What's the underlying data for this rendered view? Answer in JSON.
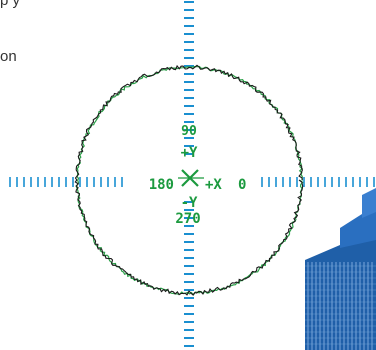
{
  "background_text": {
    "line_1": "p                y",
    "line_2": "on"
  },
  "crosshair": {
    "label_top_value": "90",
    "label_top_axis": "+Y",
    "label_left_value": "180",
    "label_right_axis": "+X",
    "label_right_value": "0",
    "label_bottom_axis": "-Y",
    "label_bottom_value": "270"
  },
  "colors": {
    "crosshair": "#1a8fd0",
    "labels": "#1c9a3f",
    "trace_black": "#1a1a1a",
    "trace_green": "#2aa048",
    "building": "#1f5fa8"
  },
  "icons": {
    "center_marker": "cross-marker-icon",
    "building": "building-graphic"
  }
}
